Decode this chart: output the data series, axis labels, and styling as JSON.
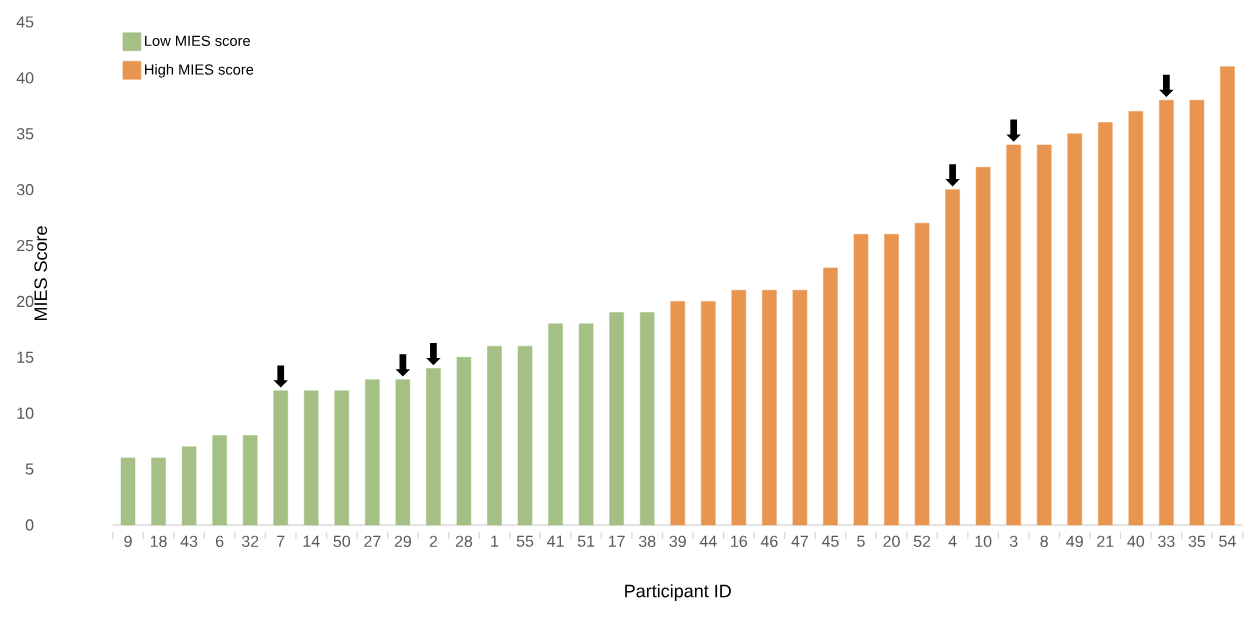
{
  "chart_data": {
    "type": "bar",
    "xlabel": "Participant ID",
    "ylabel": "MIES Score",
    "categories": [
      "9",
      "18",
      "43",
      "6",
      "32",
      "7",
      "14",
      "50",
      "27",
      "29",
      "2",
      "28",
      "1",
      "55",
      "41",
      "51",
      "17",
      "38",
      "39",
      "44",
      "16",
      "46",
      "47",
      "45",
      "5",
      "20",
      "52",
      "4",
      "10",
      "3",
      "8",
      "49",
      "21",
      "40",
      "33",
      "35",
      "54"
    ],
    "series": [
      {
        "name": "Low MIES score",
        "color": "#a5c084",
        "values": [
          6,
          6,
          7,
          8,
          8,
          12,
          12,
          12,
          13,
          13,
          14,
          15,
          16,
          16,
          18,
          18,
          19,
          19,
          null,
          null,
          null,
          null,
          null,
          null,
          null,
          null,
          null,
          null,
          null,
          null,
          null,
          null,
          null,
          null,
          null,
          null,
          null
        ]
      },
      {
        "name": "High MIES score",
        "color": "#e8964f",
        "values": [
          null,
          null,
          null,
          null,
          null,
          null,
          null,
          null,
          null,
          null,
          null,
          null,
          null,
          null,
          null,
          null,
          null,
          null,
          20,
          20,
          21,
          21,
          21,
          23,
          26,
          26,
          27,
          30,
          32,
          34,
          34,
          35,
          36,
          37,
          38,
          38,
          41
        ]
      }
    ],
    "ylim": [
      0,
      45
    ],
    "yticks": [
      0,
      5,
      10,
      15,
      20,
      25,
      30,
      35,
      40,
      45
    ],
    "grid": false,
    "legend": "top left",
    "annotations": [
      {
        "text": "⬇",
        "x": "7",
        "y": 12
      },
      {
        "text": "⬇",
        "x": "29",
        "y": 13
      },
      {
        "text": "⬇",
        "x": "2",
        "y": 14
      },
      {
        "text": "⬇",
        "x": "4",
        "y": 30
      },
      {
        "text": "⬇",
        "x": "3",
        "y": 34
      },
      {
        "text": "⬇",
        "x": "33",
        "y": 38
      }
    ]
  }
}
